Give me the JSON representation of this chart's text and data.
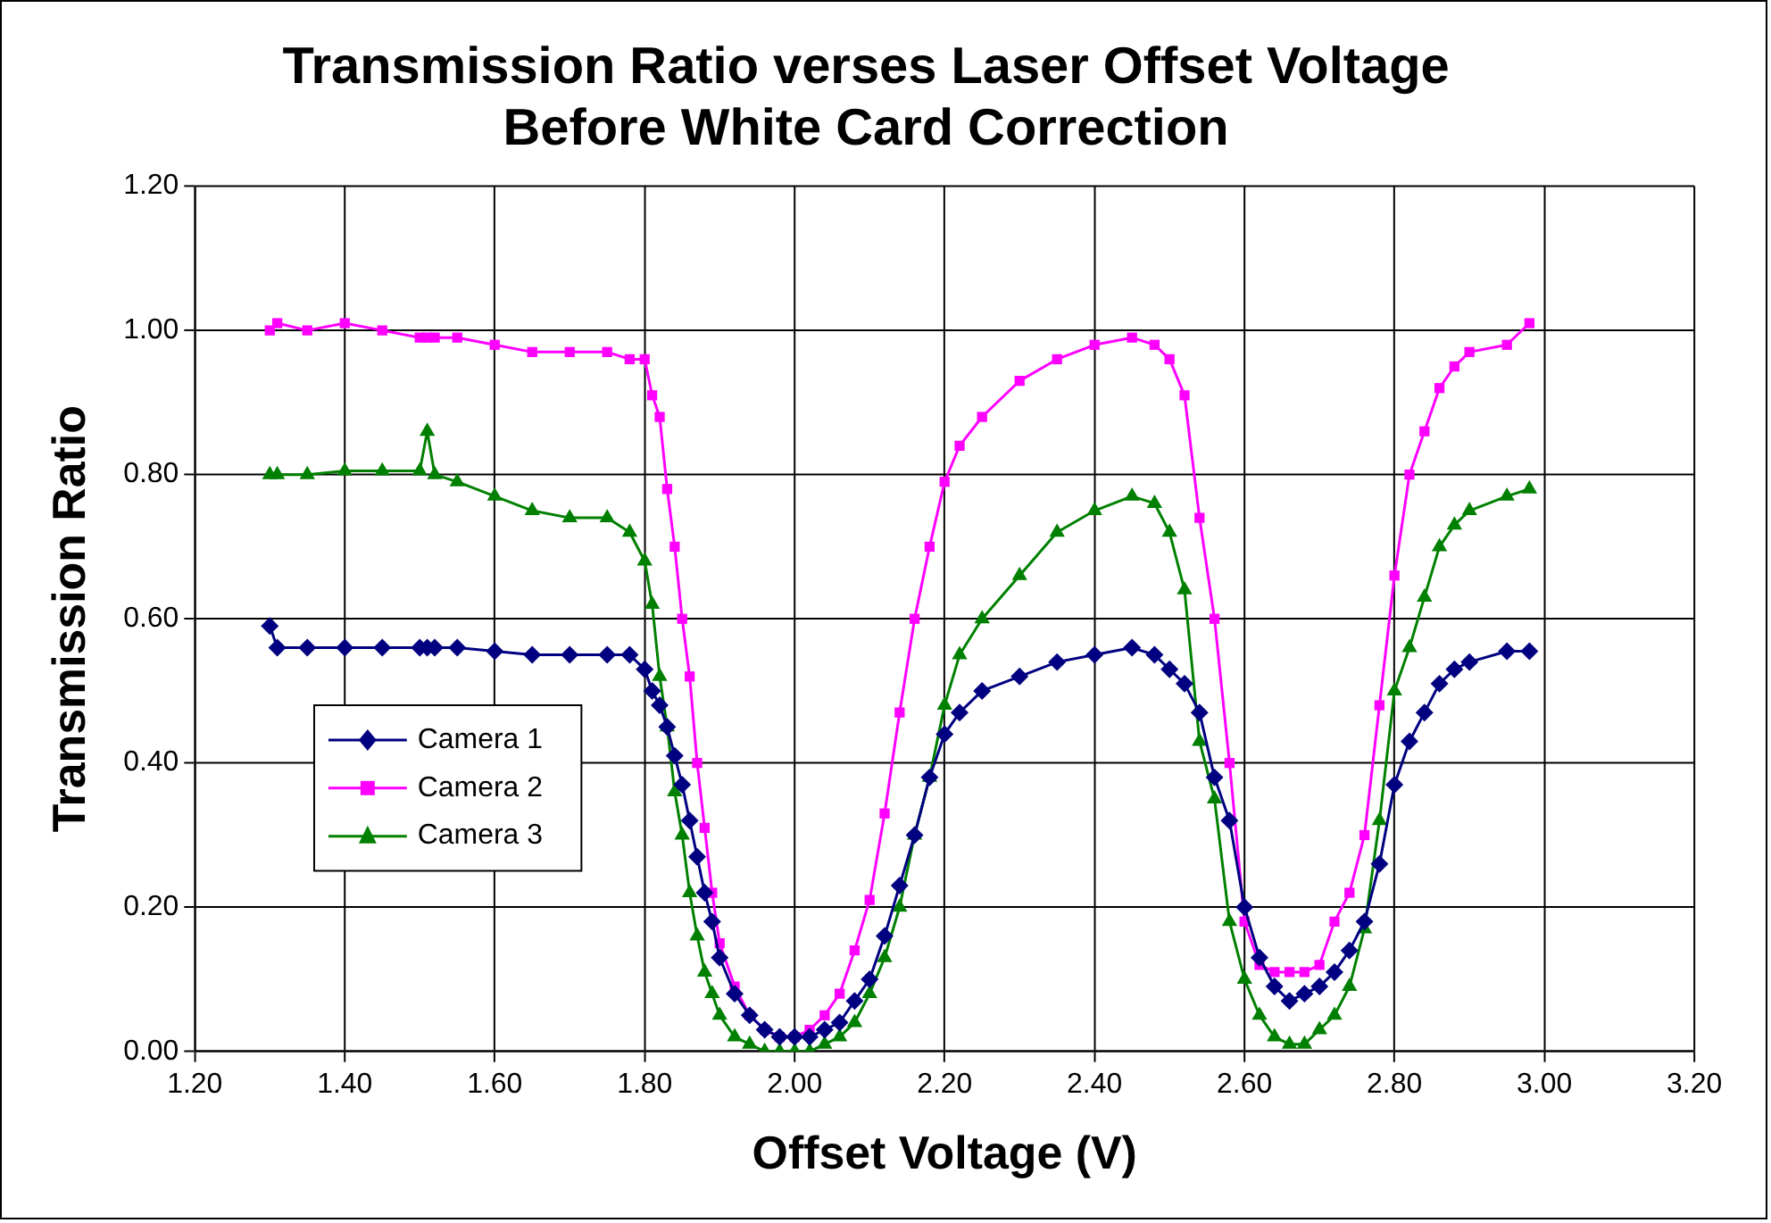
{
  "chart_data": {
    "type": "line",
    "title": "Transmission Ratio verses Laser Offset Voltage\nBefore White Card Correction",
    "xlabel": "Offset Voltage (V)",
    "ylabel": "Transmission Ratio",
    "x": [
      1.3,
      1.31,
      1.35,
      1.4,
      1.45,
      1.5,
      1.51,
      1.52,
      1.55,
      1.6,
      1.65,
      1.7,
      1.75,
      1.78,
      1.8,
      1.81,
      1.82,
      1.83,
      1.84,
      1.85,
      1.86,
      1.87,
      1.88,
      1.89,
      1.9,
      1.92,
      1.94,
      1.96,
      1.98,
      2.0,
      2.02,
      2.04,
      2.06,
      2.08,
      2.1,
      2.12,
      2.14,
      2.16,
      2.18,
      2.2,
      2.22,
      2.25,
      2.3,
      2.35,
      2.4,
      2.45,
      2.48,
      2.5,
      2.52,
      2.54,
      2.56,
      2.58,
      2.6,
      2.62,
      2.64,
      2.66,
      2.68,
      2.7,
      2.72,
      2.74,
      2.76,
      2.78,
      2.8,
      2.82,
      2.84,
      2.86,
      2.88,
      2.9,
      2.95,
      2.98
    ],
    "series": [
      {
        "name": "Camera 1",
        "color": "#000080",
        "marker": "diamond",
        "values": [
          0.59,
          0.56,
          0.56,
          0.56,
          0.56,
          0.56,
          0.56,
          0.56,
          0.56,
          0.555,
          0.55,
          0.55,
          0.55,
          0.55,
          0.53,
          0.5,
          0.48,
          0.45,
          0.41,
          0.37,
          0.32,
          0.27,
          0.22,
          0.18,
          0.13,
          0.08,
          0.05,
          0.03,
          0.02,
          0.02,
          0.02,
          0.03,
          0.04,
          0.07,
          0.1,
          0.16,
          0.23,
          0.3,
          0.38,
          0.44,
          0.47,
          0.5,
          0.52,
          0.54,
          0.55,
          0.56,
          0.55,
          0.53,
          0.51,
          0.47,
          0.38,
          0.32,
          0.2,
          0.13,
          0.09,
          0.07,
          0.08,
          0.09,
          0.11,
          0.14,
          0.18,
          0.26,
          0.37,
          0.43,
          0.47,
          0.51,
          0.53,
          0.54,
          0.555,
          0.555
        ]
      },
      {
        "name": "Camera 2",
        "color": "#ff00ff",
        "marker": "square",
        "values": [
          1.0,
          1.01,
          1.0,
          1.01,
          1.0,
          0.99,
          0.99,
          0.99,
          0.99,
          0.98,
          0.97,
          0.97,
          0.97,
          0.96,
          0.96,
          0.91,
          0.88,
          0.78,
          0.7,
          0.6,
          0.52,
          0.4,
          0.31,
          0.22,
          0.15,
          0.09,
          0.05,
          0.03,
          0.02,
          0.02,
          0.03,
          0.05,
          0.08,
          0.14,
          0.21,
          0.33,
          0.47,
          0.6,
          0.7,
          0.79,
          0.84,
          0.88,
          0.93,
          0.96,
          0.98,
          0.99,
          0.98,
          0.96,
          0.91,
          0.74,
          0.6,
          0.4,
          0.18,
          0.12,
          0.11,
          0.11,
          0.11,
          0.12,
          0.18,
          0.22,
          0.3,
          0.48,
          0.66,
          0.8,
          0.86,
          0.92,
          0.95,
          0.97,
          0.98,
          1.01
        ]
      },
      {
        "name": "Camera 3",
        "color": "#008000",
        "marker": "triangle",
        "values": [
          0.8,
          0.8,
          0.8,
          0.805,
          0.805,
          0.805,
          0.86,
          0.8,
          0.79,
          0.77,
          0.75,
          0.74,
          0.74,
          0.72,
          0.68,
          0.62,
          0.52,
          0.45,
          0.36,
          0.3,
          0.22,
          0.16,
          0.11,
          0.08,
          0.05,
          0.02,
          0.01,
          0.0,
          0.0,
          0.0,
          0.0,
          0.01,
          0.02,
          0.04,
          0.08,
          0.13,
          0.2,
          0.3,
          0.38,
          0.48,
          0.55,
          0.6,
          0.66,
          0.72,
          0.75,
          0.77,
          0.76,
          0.72,
          0.64,
          0.43,
          0.35,
          0.18,
          0.1,
          0.05,
          0.02,
          0.01,
          0.01,
          0.03,
          0.05,
          0.09,
          0.17,
          0.32,
          0.5,
          0.56,
          0.63,
          0.7,
          0.73,
          0.75,
          0.77,
          0.78
        ]
      }
    ],
    "xlim": [
      1.2,
      3.2
    ],
    "xticks": [
      {
        "value": 1.2,
        "label": "1.20"
      },
      {
        "value": 1.4,
        "label": "1.40"
      },
      {
        "value": 1.6,
        "label": "1.60"
      },
      {
        "value": 1.8,
        "label": "1.80"
      },
      {
        "value": 2.0,
        "label": "2.00"
      },
      {
        "value": 2.2,
        "label": "2.20"
      },
      {
        "value": 2.4,
        "label": "2.40"
      },
      {
        "value": 2.6,
        "label": "2.60"
      },
      {
        "value": 2.8,
        "label": "2.80"
      },
      {
        "value": 3.0,
        "label": "3.00"
      },
      {
        "value": 3.2,
        "label": "3.20"
      }
    ],
    "ylim": [
      0,
      1.2
    ],
    "yticks": [
      {
        "value": 0,
        "label": "0.00"
      },
      {
        "value": 0.2,
        "label": "0.20"
      },
      {
        "value": 0.4,
        "label": "0.40"
      },
      {
        "value": 0.6,
        "label": "0.60"
      },
      {
        "value": 0.8,
        "label": "0.80"
      },
      {
        "value": 1.0,
        "label": "1.00"
      },
      {
        "value": 1.2,
        "label": "1.20"
      }
    ],
    "grid": true,
    "legend": "left",
    "line_style": "solid"
  }
}
